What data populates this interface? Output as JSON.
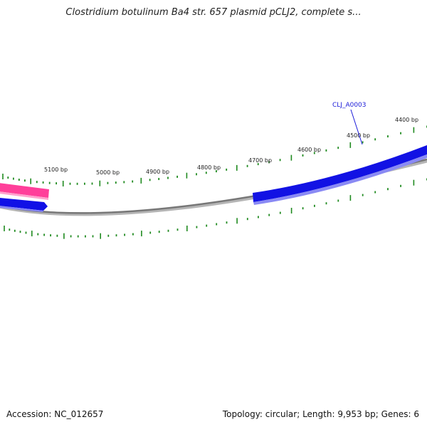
{
  "title": "Clostridium botulinum Ba4 str. 657 plasmid pCLJ2, complete s...",
  "footer": {
    "accession": "Accession: NC_012657",
    "summary": "Topology: circular; Length: 9,953 bp; Genes: 6"
  },
  "ruler": {
    "unit": "bp",
    "labels": [
      "5100 bp",
      "5000 bp",
      "4900 bp",
      "4800 bp",
      "4700 bp",
      "4600 bp",
      "4500 bp",
      "4400 bp"
    ]
  },
  "genes": [
    {
      "label": "CLJ_A0003",
      "strand": "forward"
    }
  ],
  "colors": {
    "forward_strand": "#1414e6",
    "reverse_strand": "#ff3c96",
    "backbone": "#7a7a7a",
    "ticks": "#1f8a1f",
    "gene_label": "#1a1ad8"
  }
}
